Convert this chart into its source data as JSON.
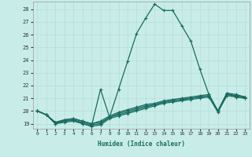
{
  "xlabel": "Humidex (Indice chaleur)",
  "ylabel": "",
  "xlim": [
    -0.5,
    23.5
  ],
  "ylim": [
    18.6,
    28.6
  ],
  "xtick_labels": [
    "0",
    "1",
    "2",
    "3",
    "4",
    "5",
    "6",
    "7",
    "8",
    "9",
    "10",
    "11",
    "12",
    "13",
    "14",
    "15",
    "16",
    "17",
    "18",
    "19",
    "20",
    "21",
    "22",
    "23"
  ],
  "ytick_labels": [
    "19",
    "20",
    "21",
    "22",
    "23",
    "24",
    "25",
    "26",
    "27",
    "28"
  ],
  "ytick_vals": [
    19,
    20,
    21,
    22,
    23,
    24,
    25,
    26,
    27,
    28
  ],
  "background_color": "#c8ede8",
  "grid_color": "#b8ddd8",
  "line_color": "#1a6b60",
  "lines": [
    [
      20.0,
      19.7,
      19.0,
      19.2,
      19.3,
      19.0,
      18.8,
      21.7,
      19.5,
      21.7,
      23.9,
      26.1,
      27.3,
      28.4,
      27.9,
      27.9,
      26.7,
      25.5,
      23.3,
      21.3,
      20.0,
      21.4,
      21.1,
      21.0
    ],
    [
      20.0,
      19.7,
      19.1,
      19.2,
      19.3,
      19.1,
      18.9,
      19.0,
      19.5,
      19.8,
      20.0,
      20.2,
      20.4,
      20.5,
      20.7,
      20.8,
      20.9,
      21.0,
      21.1,
      21.2,
      20.0,
      21.3,
      21.2,
      21.1
    ],
    [
      20.0,
      19.7,
      19.0,
      19.1,
      19.2,
      19.0,
      18.8,
      18.9,
      19.4,
      19.6,
      19.8,
      20.0,
      20.2,
      20.4,
      20.6,
      20.7,
      20.8,
      20.9,
      21.0,
      21.1,
      19.9,
      21.2,
      21.1,
      21.0
    ],
    [
      20.0,
      19.7,
      19.1,
      19.3,
      19.4,
      19.2,
      19.0,
      19.1,
      19.5,
      19.7,
      19.9,
      20.1,
      20.3,
      20.5,
      20.7,
      20.8,
      20.9,
      21.0,
      21.1,
      21.2,
      20.0,
      21.3,
      21.2,
      21.1
    ],
    [
      20.0,
      19.7,
      19.1,
      19.3,
      19.4,
      19.2,
      19.0,
      19.2,
      19.6,
      19.9,
      20.1,
      20.3,
      20.5,
      20.6,
      20.8,
      20.9,
      21.0,
      21.1,
      21.2,
      21.3,
      20.0,
      21.4,
      21.3,
      21.1
    ]
  ]
}
